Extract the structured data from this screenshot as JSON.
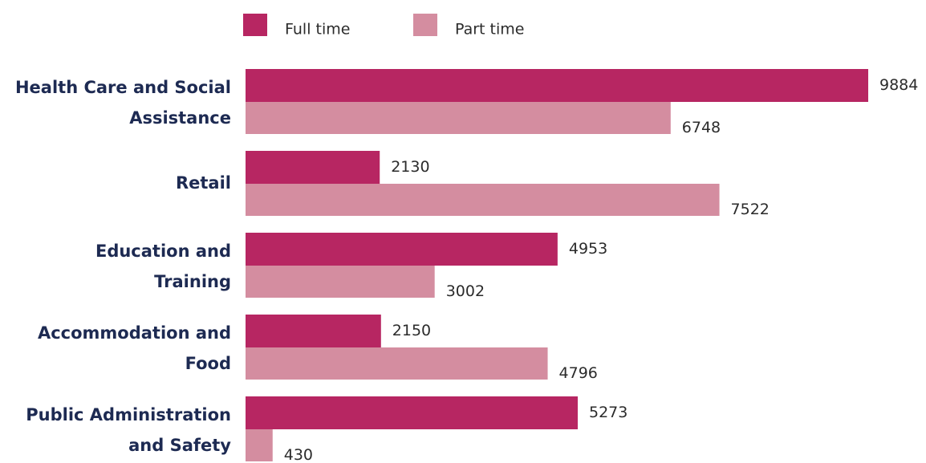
{
  "chart_data": {
    "type": "bar",
    "orientation": "horizontal",
    "categories": [
      "Health Care and Social Assistance",
      "Retail",
      "Education and Training",
      "Accommodation and Food",
      "Public Administration and Safety"
    ],
    "series": [
      {
        "name": "Full time",
        "color": "#b72662",
        "values": [
          9884,
          2130,
          4953,
          2150,
          5273
        ]
      },
      {
        "name": "Part time",
        "color": "#d48da0",
        "values": [
          6748,
          7522,
          3002,
          4796,
          430
        ]
      }
    ],
    "legend": "top"
  }
}
